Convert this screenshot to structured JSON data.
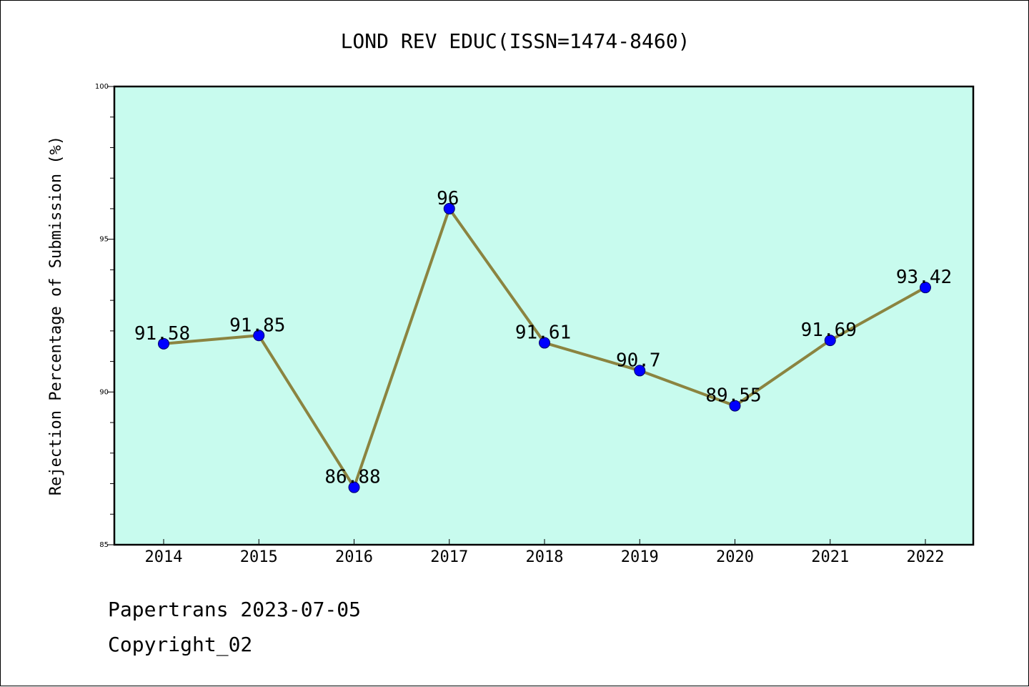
{
  "chart_data": {
    "type": "line",
    "title": "LOND REV EDUC(ISSN=1474-8460)",
    "xlabel": "",
    "ylabel": "Rejection Percentage of Submission (%)",
    "categories": [
      "2014",
      "2015",
      "2016",
      "2017",
      "2018",
      "2019",
      "2020",
      "2021",
      "2022"
    ],
    "series": [
      {
        "values": [
          91.58,
          91.85,
          86.88,
          96,
          91.61,
          90.7,
          89.55,
          91.69,
          93.42
        ],
        "data_labels": [
          "91.58",
          "91.85",
          "86.88",
          "96",
          "91.61",
          "90.7",
          "89.55",
          "91.69",
          "93.42"
        ]
      }
    ],
    "ylim": [
      85,
      100
    ],
    "yticks": [
      85,
      90,
      95,
      100
    ],
    "y_minor_step": 1,
    "grid": false,
    "legend": "none",
    "colors": {
      "plot_background": "#c8fbee",
      "line": "#8b8440",
      "marker": "#0000ff",
      "axes": "#000000"
    }
  },
  "footer": {
    "line1": "Papertrans 2023-07-05",
    "line2": "Copyright_02"
  }
}
